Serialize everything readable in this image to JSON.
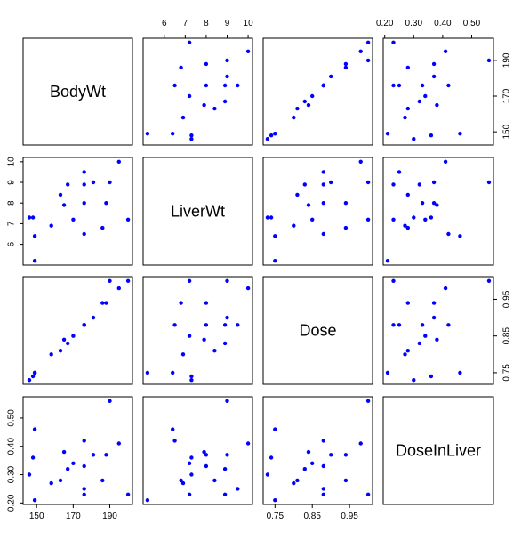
{
  "chart_data": {
    "type": "scatter",
    "variables": [
      "BodyWt",
      "LiverWt",
      "Dose",
      "DoseInLiver"
    ],
    "point_color": "#0000ff",
    "ranges": {
      "BodyWt": [
        145,
        200
      ],
      "LiverWt": [
        5.2,
        10
      ],
      "Dose": [
        0.73,
        1.0
      ],
      "DoseInLiver": [
        0.21,
        0.56
      ]
    },
    "ticks": {
      "BodyWt": {
        "values": [
          150,
          170,
          190
        ],
        "labels": [
          "150",
          "170",
          "190"
        ]
      },
      "LiverWt": {
        "values": [
          6,
          7,
          8,
          9,
          10
        ],
        "labels": [
          "6",
          "7",
          "8",
          "9",
          "10"
        ]
      },
      "Dose": {
        "values": [
          0.75,
          0.85,
          0.95
        ],
        "labels": [
          "0.75",
          "0.85",
          "0.95"
        ]
      },
      "DoseInLiver": {
        "values": [
          0.2,
          0.3,
          0.4,
          0.5
        ],
        "labels": [
          "0.20",
          "0.30",
          "0.40",
          "0.50"
        ]
      }
    },
    "observations": [
      {
        "BodyWt": 176,
        "LiverWt": 6.5,
        "Dose": 0.88,
        "DoseInLiver": 0.42
      },
      {
        "BodyWt": 176,
        "LiverWt": 9.5,
        "Dose": 0.88,
        "DoseInLiver": 0.25
      },
      {
        "BodyWt": 190,
        "LiverWt": 9.0,
        "Dose": 1.0,
        "DoseInLiver": 0.56
      },
      {
        "BodyWt": 176,
        "LiverWt": 8.9,
        "Dose": 0.88,
        "DoseInLiver": 0.23
      },
      {
        "BodyWt": 200,
        "LiverWt": 7.2,
        "Dose": 1.0,
        "DoseInLiver": 0.23
      },
      {
        "BodyWt": 167,
        "LiverWt": 8.9,
        "Dose": 0.83,
        "DoseInLiver": 0.32
      },
      {
        "BodyWt": 188,
        "LiverWt": 8.0,
        "Dose": 0.94,
        "DoseInLiver": 0.37
      },
      {
        "BodyWt": 195,
        "LiverWt": 10.0,
        "Dose": 0.98,
        "DoseInLiver": 0.41
      },
      {
        "BodyWt": 176,
        "LiverWt": 8.0,
        "Dose": 0.88,
        "DoseInLiver": 0.33
      },
      {
        "BodyWt": 165,
        "LiverWt": 7.9,
        "Dose": 0.84,
        "DoseInLiver": 0.38
      },
      {
        "BodyWt": 158,
        "LiverWt": 6.9,
        "Dose": 0.8,
        "DoseInLiver": 0.27
      },
      {
        "BodyWt": 148,
        "LiverWt": 7.3,
        "Dose": 0.74,
        "DoseInLiver": 0.36
      },
      {
        "BodyWt": 149,
        "LiverWt": 5.2,
        "Dose": 0.75,
        "DoseInLiver": 0.21
      },
      {
        "BodyWt": 163,
        "LiverWt": 8.4,
        "Dose": 0.81,
        "DoseInLiver": 0.28
      },
      {
        "BodyWt": 170,
        "LiverWt": 7.2,
        "Dose": 0.85,
        "DoseInLiver": 0.34
      },
      {
        "BodyWt": 186,
        "LiverWt": 6.8,
        "Dose": 0.94,
        "DoseInLiver": 0.28
      },
      {
        "BodyWt": 146,
        "LiverWt": 7.3,
        "Dose": 0.73,
        "DoseInLiver": 0.3
      },
      {
        "BodyWt": 181,
        "LiverWt": 9.0,
        "Dose": 0.9,
        "DoseInLiver": 0.37
      },
      {
        "BodyWt": 149,
        "LiverWt": 6.4,
        "Dose": 0.75,
        "DoseInLiver": 0.46
      }
    ]
  }
}
